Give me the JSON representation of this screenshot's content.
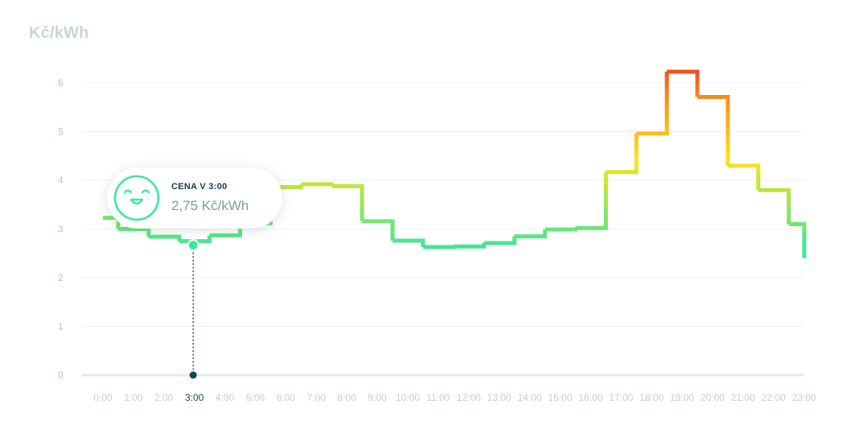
{
  "chart_data": {
    "type": "line",
    "step": true,
    "unit": "Kč/kWh",
    "title": "",
    "xlabel": "",
    "ylabel": "Kč/kWh",
    "ylim": [
      0,
      6
    ],
    "yticks": [
      "0",
      "1",
      "2",
      "3",
      "4",
      "5",
      "6"
    ],
    "categories": [
      "0:00",
      "1:00",
      "2:00",
      "3:00",
      "4:00",
      "5:00",
      "6:00",
      "7:00",
      "8:00",
      "9:00",
      "10:00",
      "11:00",
      "12:00",
      "13:00",
      "14:00",
      "15:00",
      "16:00",
      "17:00",
      "18:00",
      "19:00",
      "20:00",
      "21:00",
      "22:00",
      "23:00"
    ],
    "values": [
      3.23,
      3.0,
      2.84,
      2.75,
      2.87,
      3.12,
      3.86,
      3.92,
      3.88,
      3.16,
      2.76,
      2.63,
      2.64,
      2.71,
      2.85,
      2.99,
      3.02,
      4.17,
      4.96,
      6.23,
      5.71,
      4.3,
      3.8,
      3.1
    ],
    "grid": true,
    "legend": "none",
    "selected_index": 3,
    "gradient_colors": [
      "#3ee69a",
      "#c9e633",
      "#fde21e",
      "#f98b1e",
      "#f44e1a"
    ]
  },
  "tooltip": {
    "title": "CENA V 3:00",
    "value": "2,75 Kč/kWh",
    "icon": "smiley-face-icon",
    "icon_color": "#3ee6a0"
  },
  "colors": {
    "marker": "#3ee6a0",
    "guide": "#0f4a55",
    "axis_text": "#c3d0d3",
    "active_tick": "#0f4a55"
  }
}
